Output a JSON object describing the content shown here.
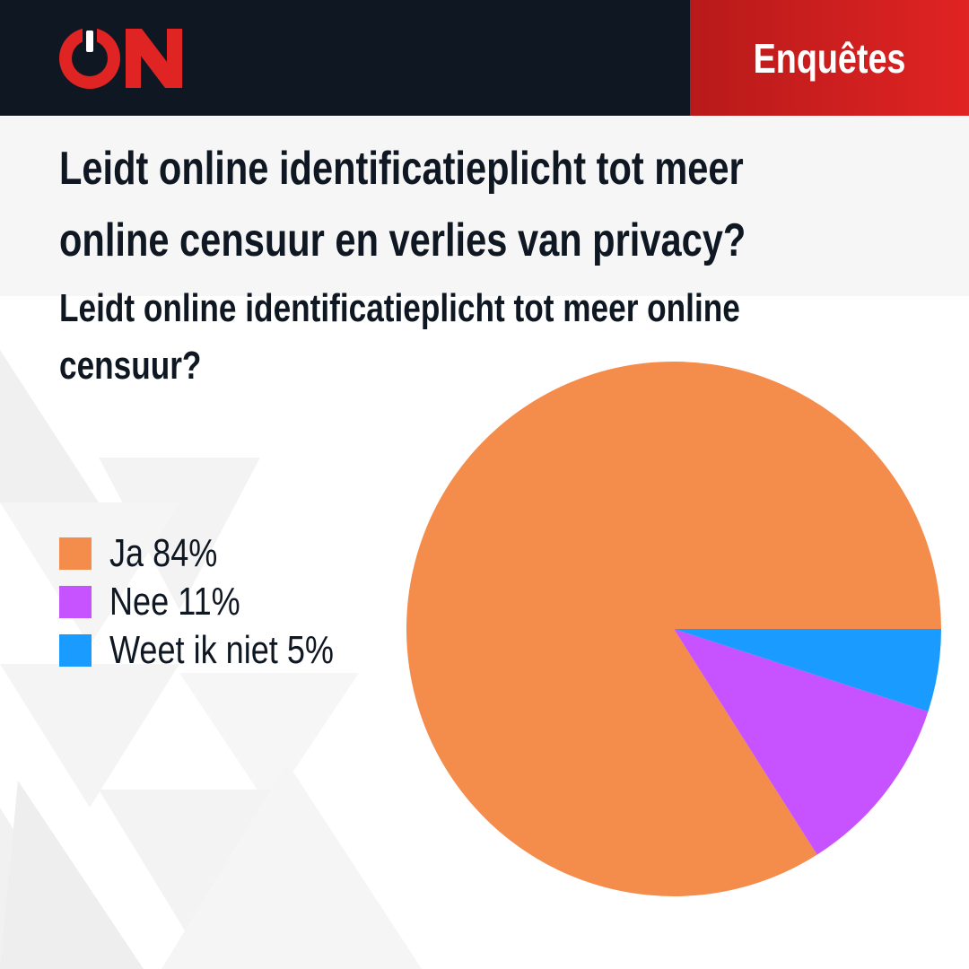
{
  "header": {
    "logo_icon": "power-on-icon",
    "brand_color": "#e02323",
    "section_label": "Enquêtes"
  },
  "title": {
    "line1": "Leidt online identificatieplicht tot meer",
    "line2": "online censuur en verlies van privacy?"
  },
  "subtitle": {
    "line1": "Leidt online identificatieplicht tot meer online",
    "line2": "censuur?"
  },
  "chart_data": {
    "type": "pie",
    "title": "Leidt online identificatieplicht tot meer online censuur?",
    "legend_position": "left",
    "slices": [
      {
        "label": "Ja 84%",
        "value": 84,
        "color": "#f48c4c"
      },
      {
        "label": "Nee 11%",
        "value": 11,
        "color": "#c653ff"
      },
      {
        "label": "Weet ik niet 5%",
        "value": 5,
        "color": "#1a9bff"
      }
    ]
  }
}
